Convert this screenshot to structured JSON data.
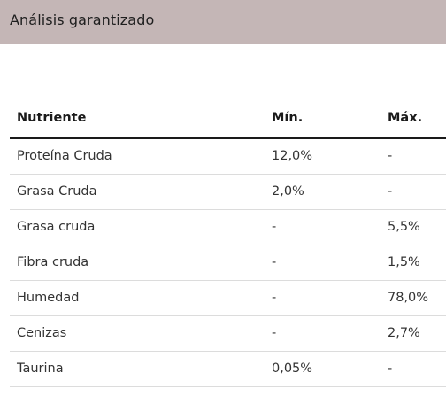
{
  "header": {
    "title": "Análisis garantizado"
  },
  "table": {
    "columns": [
      "Nutriente",
      "Mín.",
      "Máx."
    ],
    "rows": [
      {
        "nutrient": "Proteína Cruda",
        "min": "12,0%",
        "max": "-"
      },
      {
        "nutrient": "Grasa Cruda",
        "min": "2,0%",
        "max": "-"
      },
      {
        "nutrient": "Grasa cruda",
        "min": "-",
        "max": "5,5%"
      },
      {
        "nutrient": "Fibra cruda",
        "min": "-",
        "max": "1,5%"
      },
      {
        "nutrient": "Humedad",
        "min": "-",
        "max": "78,0%"
      },
      {
        "nutrient": "Cenizas",
        "min": "-",
        "max": "2,7%"
      },
      {
        "nutrient": "Taurina",
        "min": "0,05%",
        "max": "-"
      }
    ]
  },
  "colors": {
    "header_bg": "#c4b6b6",
    "rule": "#1a1a1a",
    "row_divider": "#dcdcdc"
  }
}
